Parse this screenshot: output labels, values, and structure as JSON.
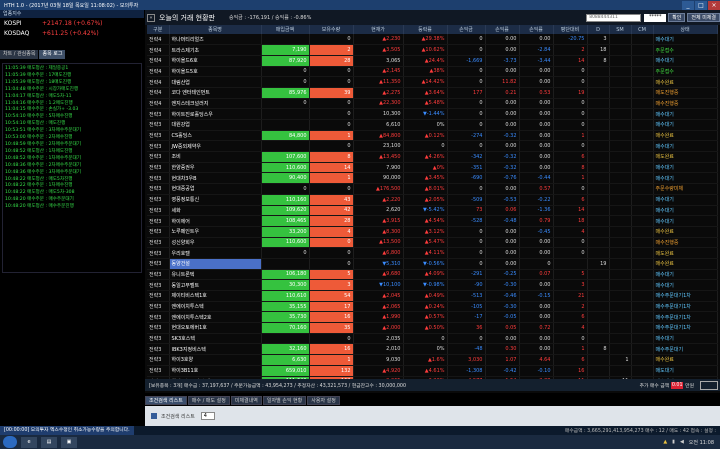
{
  "window": {
    "title": "HTH 1.0 - (2017년 03월 18일 목요일 11:08:02) - 모의투자",
    "buttons": [
      "_",
      "□",
      "×"
    ]
  },
  "left": {
    "index_label": "업종지수",
    "indices": [
      {
        "name": "KOSPI",
        "value": "+2147.18 (+0.67%)"
      },
      {
        "name": "KOSDAQ",
        "value": "+611.25 (+0.42%)"
      }
    ],
    "tabs": [
      "차트 / 관심종목",
      "종목 로그"
    ],
    "logs": [
      "11:05:39 매도청산 : 제일중공1",
      "11:05:39 매수주문 : 17매도진행",
      "11:05:39 매도청산 : 18매도진행",
      "11:04:48 매수주문 : 시장가매도진행",
      "11:04:17 매도청산 : 매도5차-11",
      "11:04:16 매수주문 : 1.2매도진행",
      "11:04:15 매수주문 : 손실가+ -3.03",
      "10:54:10 매수주문 : 5차매수진행",
      "10:54:10 매도청산 : 매도진행",
      "10:53:51 매수주문 : 3차매수주문대기",
      "10:53:00 매수주문 : 2차매수진행",
      "10:48:59 매수주문 : 2차매수주문대기",
      "10:48:52 매도청산 : 1차매도진행",
      "10:48:52 매수주문 : 1차매수주문대기",
      "10:48:36 매수주문 : 2차매수주문대기",
      "10:48:36 매수주문 : 3차매수주문대기",
      "10:48:22 매도청산 : 매도5차진행",
      "10:48:22 매수주문 : 1차매수진행",
      "10:48:22 매도청산 : 매도5차-308",
      "10:48:20 매수주문 : 매수주문대기",
      "10:48:20 매도청산 : 매수주문진행"
    ]
  },
  "main": {
    "title": "오늘의 거래 현황판",
    "info": "승익금 : -176,191  /  승익률 : -0.86%",
    "account_placeholder": "8088444311",
    "password": "*****",
    "btn_a": "확인",
    "btn_b": "전체 미체결"
  },
  "columns": [
    "구분",
    "종목명",
    "매입금액",
    "보유수량",
    "현재가",
    "등락률",
    "손익금",
    "손익률",
    "손익률",
    "평단대비",
    "D",
    "SM",
    "CM",
    "상태"
  ],
  "rows": [
    [
      "전략4",
      "하나머티리얼즈",
      "",
      "0",
      "▲2,230",
      "▲29.38%",
      "0",
      "0.00",
      "0.00",
      "-20.75",
      "3",
      "",
      "",
      "매수대기",
      "",
      "",
      "s4",
      ""
    ],
    [
      "전략4",
      "트라스제기초",
      "7,190",
      "2",
      "▲3,505",
      "▲10.62%",
      "0",
      "0.00",
      "-2.84",
      "2",
      "18",
      "",
      "",
      "주문접수",
      "g",
      "r",
      "s1",
      ""
    ],
    [
      "전략4",
      "하이올드6호",
      "87,920",
      "28",
      "3,065",
      "▲24.4%",
      "-1,669",
      "-3.73",
      "-3.44",
      "14",
      "8",
      "",
      "",
      "매수대기",
      "g",
      "r",
      "s4",
      ""
    ],
    [
      "전략4",
      "하이올드5호",
      "0",
      "0",
      "▲2,145",
      "▲38%",
      "0",
      "0.00",
      "0.00",
      "0",
      "",
      "",
      "",
      "주문접수",
      "",
      "",
      "s1",
      ""
    ],
    [
      "전략4",
      "대림산업",
      "0",
      "0",
      "▲11,350",
      "▲14.42%",
      "0",
      "11.82",
      "0.00",
      "0",
      "",
      "",
      "",
      "매수완료",
      "",
      "",
      "s2",
      "sel0"
    ],
    [
      "전략4",
      "코다 엔터테인먼트",
      "85,976",
      "39",
      "▲2,275",
      "▲3.64%",
      "177",
      "0.21",
      "0.53",
      "19",
      "",
      "",
      "",
      "매도진행중",
      "g",
      "r",
      "s3",
      ""
    ],
    [
      "전략4",
      "엔지스테크널러지",
      "0",
      "0",
      "▲22,300",
      "▲5.48%",
      "0",
      "0.00",
      "0.00",
      "0",
      "",
      "",
      "",
      "매수진행중",
      "",
      "",
      "s3",
      ""
    ],
    [
      "전략3",
      "하이트진로홀딩스우",
      "",
      "0",
      "10,300",
      "▼-1.44%",
      "0",
      "0.00",
      "0.00",
      "0",
      "",
      "",
      "",
      "매수대기",
      "",
      "",
      "s4",
      ""
    ],
    [
      "전략3",
      "대원강업",
      "",
      "0",
      "6,610",
      "0%",
      "0",
      "0.00",
      "0.00",
      "0",
      "",
      "",
      "",
      "매수대기",
      "",
      "",
      "s4",
      ""
    ],
    [
      "전략3",
      "CS홀딩스",
      "84,800",
      "1",
      "▲84,800",
      "▲0.12%",
      "-274",
      "-0.32",
      "0.00",
      "1",
      "",
      "",
      "",
      "매수완료",
      "g",
      "r",
      "s2",
      ""
    ],
    [
      "전략3",
      "JW중외제약우",
      "",
      "0",
      "23,100",
      "0",
      "0",
      "0.00",
      "0.00",
      "0",
      "",
      "",
      "",
      "매수대기",
      "",
      "",
      "s4",
      ""
    ],
    [
      "전략3",
      "조비",
      "107,600",
      "8",
      "▲13,450",
      "▲4.26%",
      "-342",
      "-0.32",
      "0.00",
      "6",
      "",
      "",
      "",
      "매도완료",
      "g",
      "r",
      "s2",
      ""
    ],
    [
      "전략3",
      "한양증권우",
      "110,600",
      "14",
      "7,900",
      "▲0%",
      "-351",
      "-0.32",
      "0.00",
      "8",
      "",
      "",
      "",
      "매수대기",
      "g",
      "r",
      "s4",
      ""
    ],
    [
      "전략3",
      "현대차3우B",
      "90,400",
      "1",
      "90,000",
      "▲3.45%",
      "-690",
      "-0.76",
      "-0.44",
      "1",
      "",
      "",
      "",
      "매수대기",
      "g",
      "r",
      "s4",
      ""
    ],
    [
      "전략3",
      "현대중공업",
      "0",
      "0",
      "▲176,500",
      "▲8.01%",
      "0",
      "0.00",
      "0.57",
      "0",
      "",
      "",
      "",
      "주문수량미체",
      "",
      "",
      "s3",
      ""
    ],
    [
      "전략3",
      "영풍정보통신",
      "110,160",
      "43",
      "▲2,220",
      "▲2.05%",
      "-509",
      "-0.53",
      "-0.22",
      "6",
      "",
      "",
      "",
      "매수대기",
      "g",
      "r",
      "s4",
      ""
    ],
    [
      "전략3",
      "세화",
      "109,620",
      "42",
      "2,620",
      "▼-5.42%",
      "73",
      "0.06",
      "-1.36",
      "14",
      "",
      "",
      "",
      "매수대기",
      "g",
      "r",
      "s4",
      ""
    ],
    [
      "전략3",
      "하이에어",
      "108,465",
      "28",
      "▲3,915",
      "▲4.54%",
      "-528",
      "-0.48",
      "0.79",
      "18",
      "",
      "",
      "",
      "매수대기",
      "g",
      "r",
      "s4",
      ""
    ],
    [
      "전략3",
      "노루페인트우",
      "33,200",
      "4",
      "▲8,300",
      "▲3.12%",
      "0",
      "0.00",
      "-0.45",
      "4",
      "",
      "",
      "",
      "매수완료",
      "g",
      "r",
      "s2",
      ""
    ],
    [
      "전략3",
      "성신양회우",
      "110,600",
      "0",
      "▲13,500",
      "▲5.47%",
      "0",
      "0.00",
      "0.00",
      "0",
      "",
      "",
      "",
      "매수진행중",
      "g",
      "r",
      "s3",
      ""
    ],
    [
      "전략3",
      "우리호텔",
      "0",
      "0",
      "▲6,800",
      "▲4.11%",
      "0",
      "0.00",
      "0.00",
      "0",
      "",
      "",
      "",
      "매도완료",
      "",
      "",
      "s2",
      ""
    ],
    [
      "전략3",
      "동양건설",
      "",
      "0",
      "▼5,310",
      "▼-0.56%",
      "0",
      "0.00",
      "0",
      "",
      "19",
      "",
      "",
      "매수완료",
      "",
      "",
      "s2",
      "sel"
    ],
    [
      "전략3",
      "유니트론텍",
      "106,180",
      "5",
      "▲9,680",
      "▲4.09%",
      "-291",
      "-0.25",
      "0.07",
      "5",
      "",
      "",
      "",
      "매수대기",
      "g",
      "r",
      "s4",
      ""
    ],
    [
      "전략3",
      "동일고무벨트",
      "30,300",
      "3",
      "▼10,100",
      "▼-0.98%",
      "-90",
      "-0.30",
      "0.00",
      "3",
      "",
      "",
      "",
      "매수대기",
      "g",
      "r",
      "s4",
      ""
    ],
    [
      "전략3",
      "제이티비스텍1호",
      "110,610",
      "54",
      "▲2,045",
      "▲0.49%",
      "-513",
      "-0.46",
      "-0.15",
      "21",
      "",
      "",
      "",
      "매수주문대기1차",
      "g",
      "r",
      "s4",
      ""
    ],
    [
      "전략3",
      "엔에이치투스텍",
      "35,155",
      "17",
      "▲2,065",
      "▲0.24%",
      "-105",
      "-0.30",
      "0.00",
      "2",
      "",
      "",
      "",
      "매수주문대기1차",
      "g",
      "r",
      "s4",
      ""
    ],
    [
      "전략3",
      "엔에이치투스텍2호",
      "35,730",
      "16",
      "▲1,990",
      "▲0.57%",
      "-17",
      "-0.05",
      "0.00",
      "6",
      "",
      "",
      "",
      "매수주문대기1차",
      "g",
      "r",
      "s4",
      ""
    ],
    [
      "전략3",
      "현대오토에버1호",
      "70,160",
      "35",
      "▲2,000",
      "▲0.50%",
      "36",
      "0.05",
      "0.72",
      "4",
      "",
      "",
      "",
      "매수주문대기1차",
      "g",
      "r",
      "s4",
      ""
    ],
    [
      "전략3",
      "SK3호스텍",
      "",
      "0",
      "2,035",
      "0",
      "0",
      "0.00",
      "0.00",
      "0",
      "",
      "",
      "",
      "매수대기",
      "",
      "",
      "s4",
      ""
    ],
    [
      "전략3",
      "IBK3지정비스텍",
      "32,160",
      "16",
      "2,010",
      "0%",
      "-48",
      "0.30",
      "0.00",
      "1",
      "8",
      "",
      "",
      "매수주문대기",
      "g",
      "r",
      "s4",
      ""
    ],
    [
      "전략3",
      "하이3호양",
      "6,630",
      "1",
      "9,030",
      "▲1.6%",
      "3,030",
      "1.07",
      "4.64",
      "6",
      "",
      "1",
      "",
      "매수완료",
      "g",
      "r",
      "s2",
      ""
    ],
    [
      "전략3",
      "하이3B11호",
      "659,010",
      "132",
      "▲4,920",
      "▲4.61%",
      "-1,308",
      "-0.42",
      "-0.10",
      "16",
      "",
      "",
      "",
      "매도대기",
      "g",
      "r",
      "s4",
      ""
    ],
    [
      "전략3",
      "하이B스토4호스텍",
      "111,640",
      "162",
      "▲2,065",
      "▲2.26%",
      "4,577",
      "1.54",
      "2.88",
      "11",
      "",
      "11",
      "",
      "매수대기",
      "g",
      "r",
      "s4",
      ""
    ]
  ],
  "totals": {
    "text": "[보유종목 : 3개]     매수금 : 37,197,637 / 주문가능금액 : 43,954,273 / 추정자산 : 43,321,573 / 현금잔고수 : 30,000,000",
    "order_label": "추가 매수 금액",
    "order_val": "0.01",
    "unit": "만원"
  },
  "bottom_tabs": [
    "조건검색 리스트",
    "매수 / 매도 설정",
    "미체결내역",
    "일자별 손익 현황",
    "사용자 설정"
  ],
  "bottom": {
    "label": "조건검색 리스트",
    "value": "4"
  },
  "status": {
    "left": "[00:00:00] 모의투자 엑스수정인 취소가능수량을 주의합니다.",
    "right": "매수금액 : 3,665,291,413,954,273     매수 : 12 / 매도 : 42     접속 : 설정 :"
  },
  "tray": {
    "time": "오전 11:08"
  }
}
